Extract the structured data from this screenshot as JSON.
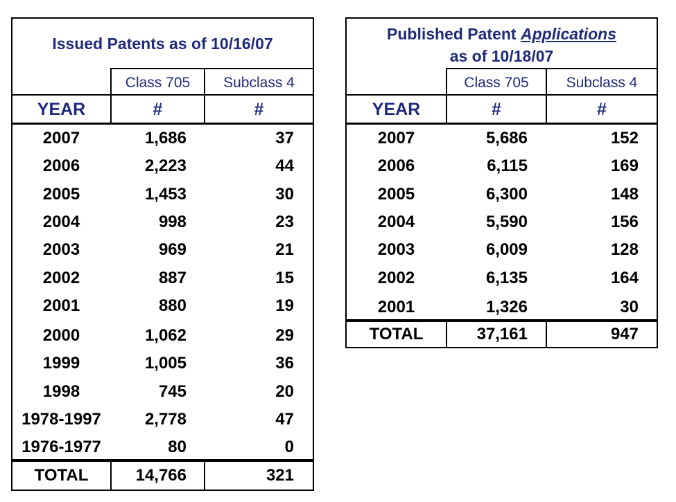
{
  "issued": {
    "title": "Issued Patents as of 10/16/07",
    "col_headers": [
      "Class 705",
      "Subclass 4"
    ],
    "year_header": "YEAR",
    "hash_headers": [
      "#",
      "#"
    ],
    "rows": [
      {
        "year": "2007",
        "c705": "1,686",
        "sub4": "37"
      },
      {
        "year": "2006",
        "c705": "2,223",
        "sub4": "44"
      },
      {
        "year": "2005",
        "c705": "1,453",
        "sub4": "30"
      },
      {
        "year": "2004",
        "c705": "998",
        "sub4": "23"
      },
      {
        "year": "2003",
        "c705": "969",
        "sub4": "21"
      },
      {
        "year": "2002",
        "c705": "887",
        "sub4": "15"
      },
      {
        "year": "2001",
        "c705": "880",
        "sub4": "19"
      },
      {
        "year": "2000",
        "c705": "1,062",
        "sub4": "29"
      },
      {
        "year": "1999",
        "c705": "1,005",
        "sub4": "36"
      },
      {
        "year": "1998",
        "c705": "745",
        "sub4": "20"
      },
      {
        "year": "1978-1997",
        "c705": "2,778",
        "sub4": "47"
      },
      {
        "year": "1976-1977",
        "c705": "80",
        "sub4": "0"
      }
    ],
    "total": {
      "label": "TOTAL",
      "c705": "14,766",
      "sub4": "321"
    }
  },
  "published": {
    "title_prefix": "Published Patent ",
    "title_emph": "Applications",
    "title_line2": "as of 10/18/07",
    "col_headers": [
      "Class 705",
      "Subclass 4"
    ],
    "year_header": "YEAR",
    "hash_headers": [
      "#",
      "#"
    ],
    "rows": [
      {
        "year": "2007",
        "c705": "5,686",
        "sub4": "152"
      },
      {
        "year": "2006",
        "c705": "6,115",
        "sub4": "169"
      },
      {
        "year": "2005",
        "c705": "6,300",
        "sub4": "148"
      },
      {
        "year": "2004",
        "c705": "5,590",
        "sub4": "156"
      },
      {
        "year": "2003",
        "c705": "6,009",
        "sub4": "128"
      },
      {
        "year": "2002",
        "c705": "6,135",
        "sub4": "164"
      },
      {
        "year": "2001",
        "c705": "1,326",
        "sub4": "30"
      }
    ],
    "total": {
      "label": "TOTAL",
      "c705": "37,161",
      "sub4": "947"
    }
  },
  "colors": {
    "header_text": "#1f2a7a",
    "body_text": "#000000",
    "border": "#000000"
  }
}
